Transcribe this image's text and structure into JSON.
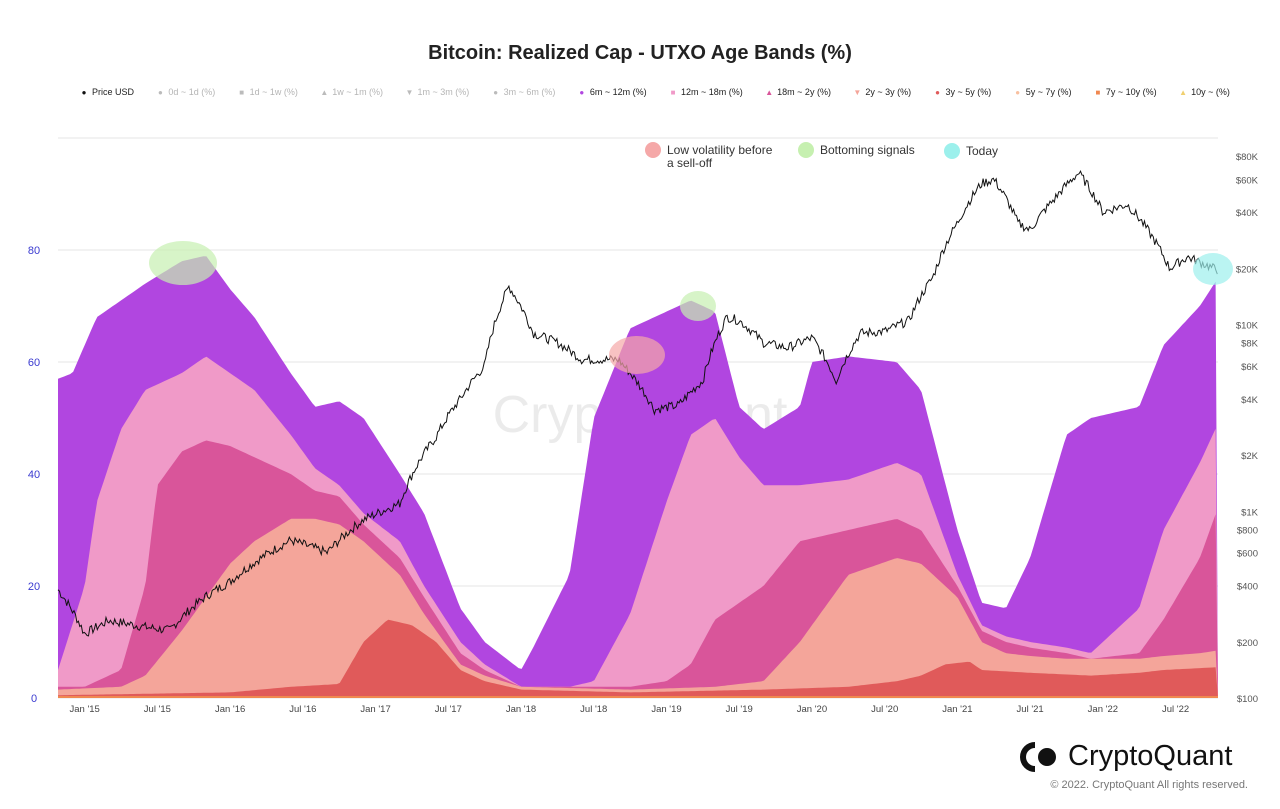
{
  "chart_data": {
    "type": "area",
    "stacked": true,
    "title": "Bitcoin: Realized Cap - UTXO Age Bands (%)",
    "x_unit": "month index from Jan 2015",
    "x_range": [
      -2.2,
      93.5
    ],
    "y_left": {
      "range": [
        0,
        100
      ],
      "ticks": [
        "0",
        "20",
        "40",
        "60",
        "80"
      ]
    },
    "y_right": {
      "scale": "log",
      "range": [
        100,
        100000
      ],
      "ticks": [
        {
          "v": 100,
          "label": "$100"
        },
        {
          "v": 200,
          "label": "$200"
        },
        {
          "v": 400,
          "label": "$400"
        },
        {
          "v": 600,
          "label": "$600"
        },
        {
          "v": 800,
          "label": "$800"
        },
        {
          "v": 1000,
          "label": "$1K"
        },
        {
          "v": 2000,
          "label": "$2K"
        },
        {
          "v": 4000,
          "label": "$4K"
        },
        {
          "v": 6000,
          "label": "$6K"
        },
        {
          "v": 8000,
          "label": "$8K"
        },
        {
          "v": 10000,
          "label": "$10K"
        },
        {
          "v": 20000,
          "label": "$20K"
        },
        {
          "v": 40000,
          "label": "$40K"
        },
        {
          "v": 60000,
          "label": "$60K"
        },
        {
          "v": 80000,
          "label": "$80K"
        }
      ]
    },
    "x_ticks": [
      {
        "m": 0,
        "label": "Jan '15"
      },
      {
        "m": 6,
        "label": "Jul '15"
      },
      {
        "m": 12,
        "label": "Jan '16"
      },
      {
        "m": 18,
        "label": "Jul '16"
      },
      {
        "m": 24,
        "label": "Jan '17"
      },
      {
        "m": 30,
        "label": "Jul '17"
      },
      {
        "m": 36,
        "label": "Jan '18"
      },
      {
        "m": 42,
        "label": "Jul '18"
      },
      {
        "m": 48,
        "label": "Jan '19"
      },
      {
        "m": 54,
        "label": "Jul '19"
      },
      {
        "m": 60,
        "label": "Jan '20"
      },
      {
        "m": 66,
        "label": "Jul '20"
      },
      {
        "m": 72,
        "label": "Jan '21"
      },
      {
        "m": 78,
        "label": "Jul '21"
      },
      {
        "m": 84,
        "label": "Jan '22"
      },
      {
        "m": 90,
        "label": "Jul '22"
      }
    ],
    "legend": [
      {
        "label": "Price USD",
        "color": "#111111",
        "marker": "●",
        "active": true
      },
      {
        "label": "0d ~ 1d (%)",
        "color": "#bbbbbb",
        "marker": "●",
        "active": false
      },
      {
        "label": "1d ~ 1w (%)",
        "color": "#bbbbbb",
        "marker": "■",
        "active": false
      },
      {
        "label": "1w ~ 1m (%)",
        "color": "#bbbbbb",
        "marker": "▲",
        "active": false
      },
      {
        "label": "1m ~ 3m (%)",
        "color": "#bbbbbb",
        "marker": "▼",
        "active": false
      },
      {
        "label": "3m ~ 6m (%)",
        "color": "#bbbbbb",
        "marker": "●",
        "active": false
      },
      {
        "label": "6m ~ 12m (%)",
        "color": "#b146e0",
        "marker": "●",
        "active": true
      },
      {
        "label": "12m ~ 18m (%)",
        "color": "#f09ac8",
        "marker": "■",
        "active": true
      },
      {
        "label": "18m ~ 2y (%)",
        "color": "#d9559a",
        "marker": "▲",
        "active": true
      },
      {
        "label": "2y ~ 3y (%)",
        "color": "#f4a59a",
        "marker": "▼",
        "active": true
      },
      {
        "label": "3y ~ 5y (%)",
        "color": "#e05a5a",
        "marker": "●",
        "active": true
      },
      {
        "label": "5y ~ 7y (%)",
        "color": "#f8c0a0",
        "marker": "●",
        "active": true
      },
      {
        "label": "7y ~ 10y (%)",
        "color": "#f08850",
        "marker": "■",
        "active": true
      },
      {
        "label": "10y ~ (%)",
        "color": "#f0d070",
        "marker": "▲",
        "active": true
      }
    ],
    "series_cumulative_top": [
      {
        "name": "3y ~ 5y (%) and older",
        "color": "#e05a5a",
        "points": [
          [
            -2.2,
            0.5
          ],
          [
            12,
            1
          ],
          [
            17,
            2
          ],
          [
            21,
            2.5
          ],
          [
            23,
            10
          ],
          [
            25,
            14
          ],
          [
            27,
            13
          ],
          [
            29,
            10
          ],
          [
            31,
            5
          ],
          [
            33,
            3
          ],
          [
            36,
            1.5
          ],
          [
            45,
            1
          ],
          [
            56,
            1.5
          ],
          [
            63,
            2
          ],
          [
            67,
            3
          ],
          [
            69,
            4
          ],
          [
            71,
            6
          ],
          [
            73,
            6.5
          ],
          [
            74,
            5
          ],
          [
            78,
            4.5
          ],
          [
            83,
            4
          ],
          [
            87,
            4.5
          ],
          [
            89,
            5
          ],
          [
            93.5,
            5.5
          ]
        ]
      },
      {
        "name": "2y ~ 3y (%)",
        "color": "#f4a59a",
        "points": [
          [
            -2.2,
            1.5
          ],
          [
            3,
            2
          ],
          [
            5,
            4
          ],
          [
            8,
            12
          ],
          [
            10,
            18
          ],
          [
            12,
            24
          ],
          [
            14,
            28
          ],
          [
            17,
            32
          ],
          [
            19,
            32
          ],
          [
            21,
            31
          ],
          [
            23,
            28
          ],
          [
            26,
            22
          ],
          [
            28,
            15
          ],
          [
            31,
            6
          ],
          [
            33,
            4
          ],
          [
            36,
            2
          ],
          [
            45,
            1.5
          ],
          [
            52,
            2
          ],
          [
            56,
            3
          ],
          [
            59,
            10
          ],
          [
            63,
            22
          ],
          [
            67,
            25
          ],
          [
            69,
            24
          ],
          [
            72,
            18
          ],
          [
            74,
            10
          ],
          [
            76,
            8
          ],
          [
            78,
            7.5
          ],
          [
            81,
            7
          ],
          [
            87,
            7
          ],
          [
            89,
            7.5
          ],
          [
            92,
            8
          ],
          [
            93.5,
            8.5
          ]
        ]
      },
      {
        "name": "18m ~ 2y (%)",
        "color": "#d9559a",
        "points": [
          [
            -2.2,
            2
          ],
          [
            0,
            2
          ],
          [
            3,
            5
          ],
          [
            5,
            20
          ],
          [
            6,
            38
          ],
          [
            8,
            44
          ],
          [
            10,
            46
          ],
          [
            12,
            45
          ],
          [
            14,
            43
          ],
          [
            17,
            40
          ],
          [
            19,
            37
          ],
          [
            21,
            36
          ],
          [
            23,
            31
          ],
          [
            26,
            25
          ],
          [
            28,
            18
          ],
          [
            31,
            8
          ],
          [
            33,
            5
          ],
          [
            36,
            2
          ],
          [
            45,
            2
          ],
          [
            48,
            3
          ],
          [
            50,
            6
          ],
          [
            52,
            14
          ],
          [
            54,
            17
          ],
          [
            56,
            20
          ],
          [
            59,
            28
          ],
          [
            63,
            30
          ],
          [
            67,
            32
          ],
          [
            69,
            30
          ],
          [
            72,
            20
          ],
          [
            74,
            12
          ],
          [
            76,
            10
          ],
          [
            78,
            9
          ],
          [
            81,
            8
          ],
          [
            83,
            7
          ],
          [
            87,
            8
          ],
          [
            89,
            14
          ],
          [
            92,
            25
          ],
          [
            93.5,
            34
          ]
        ]
      },
      {
        "name": "12m ~ 18m (%)",
        "color": "#f09ac8",
        "points": [
          [
            -2.2,
            5
          ],
          [
            0,
            20
          ],
          [
            1,
            35
          ],
          [
            3,
            48
          ],
          [
            5,
            55
          ],
          [
            8,
            58
          ],
          [
            10,
            61
          ],
          [
            12,
            58
          ],
          [
            14,
            55
          ],
          [
            17,
            47
          ],
          [
            19,
            41
          ],
          [
            21,
            38
          ],
          [
            23,
            33
          ],
          [
            26,
            28
          ],
          [
            28,
            20
          ],
          [
            31,
            10
          ],
          [
            33,
            6
          ],
          [
            36,
            2
          ],
          [
            40,
            2
          ],
          [
            42,
            3
          ],
          [
            45,
            15
          ],
          [
            48,
            35
          ],
          [
            50,
            47
          ],
          [
            52,
            50
          ],
          [
            54,
            43
          ],
          [
            56,
            38
          ],
          [
            59,
            38
          ],
          [
            63,
            39
          ],
          [
            67,
            42
          ],
          [
            69,
            40
          ],
          [
            72,
            22
          ],
          [
            74,
            13
          ],
          [
            76,
            11
          ],
          [
            78,
            10
          ],
          [
            81,
            9
          ],
          [
            83,
            8
          ],
          [
            87,
            16
          ],
          [
            89,
            30
          ],
          [
            92,
            42
          ],
          [
            93.5,
            49
          ]
        ]
      },
      {
        "name": "6m ~ 12m (%)",
        "color": "#b146e0",
        "points": [
          [
            -2.2,
            57
          ],
          [
            -1,
            58
          ],
          [
            1,
            68
          ],
          [
            5,
            74
          ],
          [
            8,
            78
          ],
          [
            10,
            79
          ],
          [
            12,
            73
          ],
          [
            14,
            68
          ],
          [
            17,
            58
          ],
          [
            19,
            52
          ],
          [
            21,
            53
          ],
          [
            23,
            50
          ],
          [
            26,
            40
          ],
          [
            28,
            33
          ],
          [
            31,
            16
          ],
          [
            33,
            10
          ],
          [
            36,
            5
          ],
          [
            37,
            9
          ],
          [
            40,
            22
          ],
          [
            42,
            50
          ],
          [
            45,
            66
          ],
          [
            50,
            71
          ],
          [
            52,
            69
          ],
          [
            54,
            52
          ],
          [
            56,
            48
          ],
          [
            59,
            52
          ],
          [
            60,
            60
          ],
          [
            63,
            61
          ],
          [
            67,
            60
          ],
          [
            69,
            55
          ],
          [
            72,
            30
          ],
          [
            74,
            17
          ],
          [
            76,
            16
          ],
          [
            78,
            25
          ],
          [
            81,
            47
          ],
          [
            83,
            50
          ],
          [
            87,
            52
          ],
          [
            89,
            63
          ],
          [
            92,
            70
          ],
          [
            93.5,
            75
          ]
        ]
      }
    ],
    "price_usd": [
      [
        -2.2,
        380
      ],
      [
        0,
        220
      ],
      [
        2,
        260
      ],
      [
        5,
        240
      ],
      [
        7,
        230
      ],
      [
        10,
        350
      ],
      [
        12,
        420
      ],
      [
        17,
        700
      ],
      [
        20,
        600
      ],
      [
        23,
        900
      ],
      [
        26,
        1100
      ],
      [
        29,
        2500
      ],
      [
        31,
        4000
      ],
      [
        33,
        6000
      ],
      [
        35,
        16000
      ],
      [
        37,
        9000
      ],
      [
        39,
        8000
      ],
      [
        41,
        6500
      ],
      [
        44,
        6500
      ],
      [
        46,
        4500
      ],
      [
        47,
        3500
      ],
      [
        49,
        3700
      ],
      [
        51,
        5000
      ],
      [
        53,
        11000
      ],
      [
        54,
        10500
      ],
      [
        56,
        8000
      ],
      [
        58,
        7500
      ],
      [
        60,
        8500
      ],
      [
        62,
        5000
      ],
      [
        64,
        9000
      ],
      [
        66,
        9200
      ],
      [
        68,
        10500
      ],
      [
        70,
        18000
      ],
      [
        72,
        35000
      ],
      [
        74,
        57000
      ],
      [
        75,
        60000
      ],
      [
        77,
        35000
      ],
      [
        78,
        32000
      ],
      [
        80,
        47000
      ],
      [
        82,
        65000
      ],
      [
        84,
        40000
      ],
      [
        86,
        44000
      ],
      [
        88,
        30000
      ],
      [
        89.5,
        20000
      ],
      [
        91,
        23000
      ],
      [
        93.5,
        19500
      ]
    ],
    "annotations": [
      {
        "label": "Low volatility before a sell-off",
        "label_lines": [
          "Low volatility before",
          "a sell-off"
        ],
        "color": "#f5a8a8"
      },
      {
        "label": "Bottoming signals",
        "color": "#c6f0b0"
      },
      {
        "label": "Today",
        "color": "#9cf0ec"
      }
    ]
  },
  "watermark": "CryptoQuant",
  "footer": {
    "brand": "CryptoQuant",
    "copyright": "© 2022. CryptoQuant All rights reserved."
  }
}
